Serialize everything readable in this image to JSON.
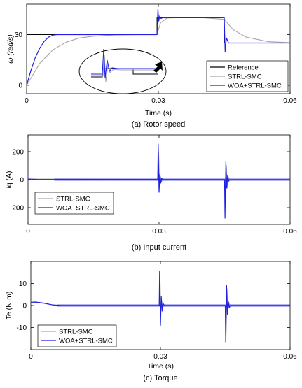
{
  "colors": {
    "reference": "#000000",
    "strl_smc": "#a6a6a6",
    "woa_strl_smc": "#1f1fe6"
  },
  "chart_data": [
    {
      "type": "line",
      "caption": "(a) Rotor speed",
      "xlabel": "Time (s)",
      "ylabel": "ω (rad/s)",
      "xlim": [
        0,
        0.06
      ],
      "ylim": [
        -5,
        48
      ],
      "xticks": [
        "0",
        "0.03",
        "0.06"
      ],
      "yticks": [
        "0",
        "30"
      ],
      "xtick_values": [
        0,
        0.03,
        0.06
      ],
      "ytick_values": [
        0,
        30
      ],
      "legend": [
        "Reference",
        "STRL-SMC",
        "WOA+STRL-SMC"
      ],
      "series": [
        {
          "name": "Reference",
          "x": [
            0,
            0.0015,
            0.0015,
            0.0297,
            0.0297,
            0.045,
            0.045,
            0.06
          ],
          "y": [
            30,
            30,
            30,
            30,
            40,
            40,
            25,
            25
          ]
        },
        {
          "name": "STRL-SMC",
          "x": [
            0,
            0.003,
            0.006,
            0.009,
            0.012,
            0.015,
            0.02,
            0.025,
            0.0297,
            0.0305,
            0.032,
            0.035,
            0.04,
            0.045,
            0.047,
            0.05,
            0.055,
            0.06
          ],
          "y": [
            0,
            13,
            21,
            25.5,
            28,
            29,
            29.8,
            30,
            30,
            37,
            39.8,
            40,
            40,
            39,
            33,
            28.5,
            25.8,
            25.2
          ]
        },
        {
          "name": "WOA+STRL-SMC",
          "x": [
            0,
            0.001,
            0.002,
            0.003,
            0.004,
            0.005,
            0.006,
            0.007,
            0.0297,
            0.0299,
            0.0301,
            0.0303,
            0.0306,
            0.031,
            0.045,
            0.0452,
            0.0455,
            0.046,
            0.06
          ],
          "y": [
            0,
            9,
            16.5,
            22,
            26,
            28.5,
            29.7,
            30,
            30,
            45,
            38,
            41,
            39.5,
            40,
            40,
            20,
            28,
            25,
            25
          ]
        }
      ]
    },
    {
      "type": "line",
      "caption": "(b) Input current",
      "xlabel": "",
      "ylabel": "iq (A)",
      "xlim": [
        0,
        0.06
      ],
      "ylim": [
        -320,
        320
      ],
      "xticks": [
        "0",
        "0.03",
        "0.06"
      ],
      "yticks": [
        "200",
        "0",
        "-200"
      ],
      "xtick_values": [
        0,
        0.03,
        0.06
      ],
      "ytick_values": [
        200,
        0,
        -200
      ],
      "legend": [
        "STRL-SMC",
        "WOA+STRL-SMC"
      ],
      "series": [
        {
          "name": "STRL-SMC",
          "x": [
            0,
            0.0297,
            0.0299,
            0.0301,
            0.0303,
            0.0305,
            0.0308,
            0.045,
            0.0452,
            0.0454,
            0.0456,
            0.0458,
            0.0461,
            0.06
          ],
          "y": [
            5,
            2,
            200,
            -30,
            25,
            -15,
            2,
            1,
            -190,
            100,
            -60,
            25,
            -2,
            -2
          ]
        },
        {
          "name": "WOA+STRL-SMC",
          "x": [
            0,
            0.002,
            0.0297,
            0.0298,
            0.03,
            0.0302,
            0.0304,
            0.0306,
            0.0309,
            0.045,
            0.0451,
            0.0453,
            0.0455,
            0.0457,
            0.0459,
            0.0462,
            0.06
          ],
          "y": [
            5,
            2,
            1,
            255,
            -90,
            38,
            -25,
            10,
            0,
            0,
            -275,
            130,
            -60,
            30,
            -12,
            0,
            0
          ]
        }
      ]
    },
    {
      "type": "line",
      "caption": "(c) Torque",
      "xlabel": "Time (s)",
      "ylabel": "Te (N·m)",
      "xlim": [
        0,
        0.06
      ],
      "ylim": [
        -20,
        20
      ],
      "xticks": [
        "0",
        "0.03",
        "0.06"
      ],
      "yticks": [
        "10",
        "0",
        "-10"
      ],
      "xtick_values": [
        0,
        0.03,
        0.06
      ],
      "ytick_values": [
        10,
        0,
        -10
      ],
      "legend": [
        "STRL-SMC",
        "WOA+STRL-SMC"
      ],
      "series": [
        {
          "name": "STRL-SMC",
          "x": [
            0,
            0.001,
            0.003,
            0.005,
            0.007,
            0.0297,
            0.0299,
            0.0301,
            0.0303,
            0.0305,
            0.0308,
            0.045,
            0.0452,
            0.0454,
            0.0456,
            0.0458,
            0.0461,
            0.06
          ],
          "y": [
            1.2,
            1.4,
            1,
            0.3,
            0,
            0,
            12,
            -3,
            2,
            -1,
            0,
            0,
            -13,
            7,
            -3,
            1.5,
            0,
            0
          ]
        },
        {
          "name": "WOA+STRL-SMC",
          "x": [
            0,
            0.001,
            0.003,
            0.005,
            0.007,
            0.0297,
            0.0298,
            0.03,
            0.0302,
            0.0304,
            0.0306,
            0.0309,
            0.045,
            0.0451,
            0.0453,
            0.0455,
            0.0457,
            0.0459,
            0.0462,
            0.06
          ],
          "y": [
            1.5,
            1.6,
            1.1,
            0.3,
            0,
            0,
            15.5,
            -9,
            4,
            -2.5,
            1,
            0,
            0,
            -16.5,
            9,
            -4,
            2,
            -1,
            0,
            0
          ]
        }
      ]
    }
  ]
}
